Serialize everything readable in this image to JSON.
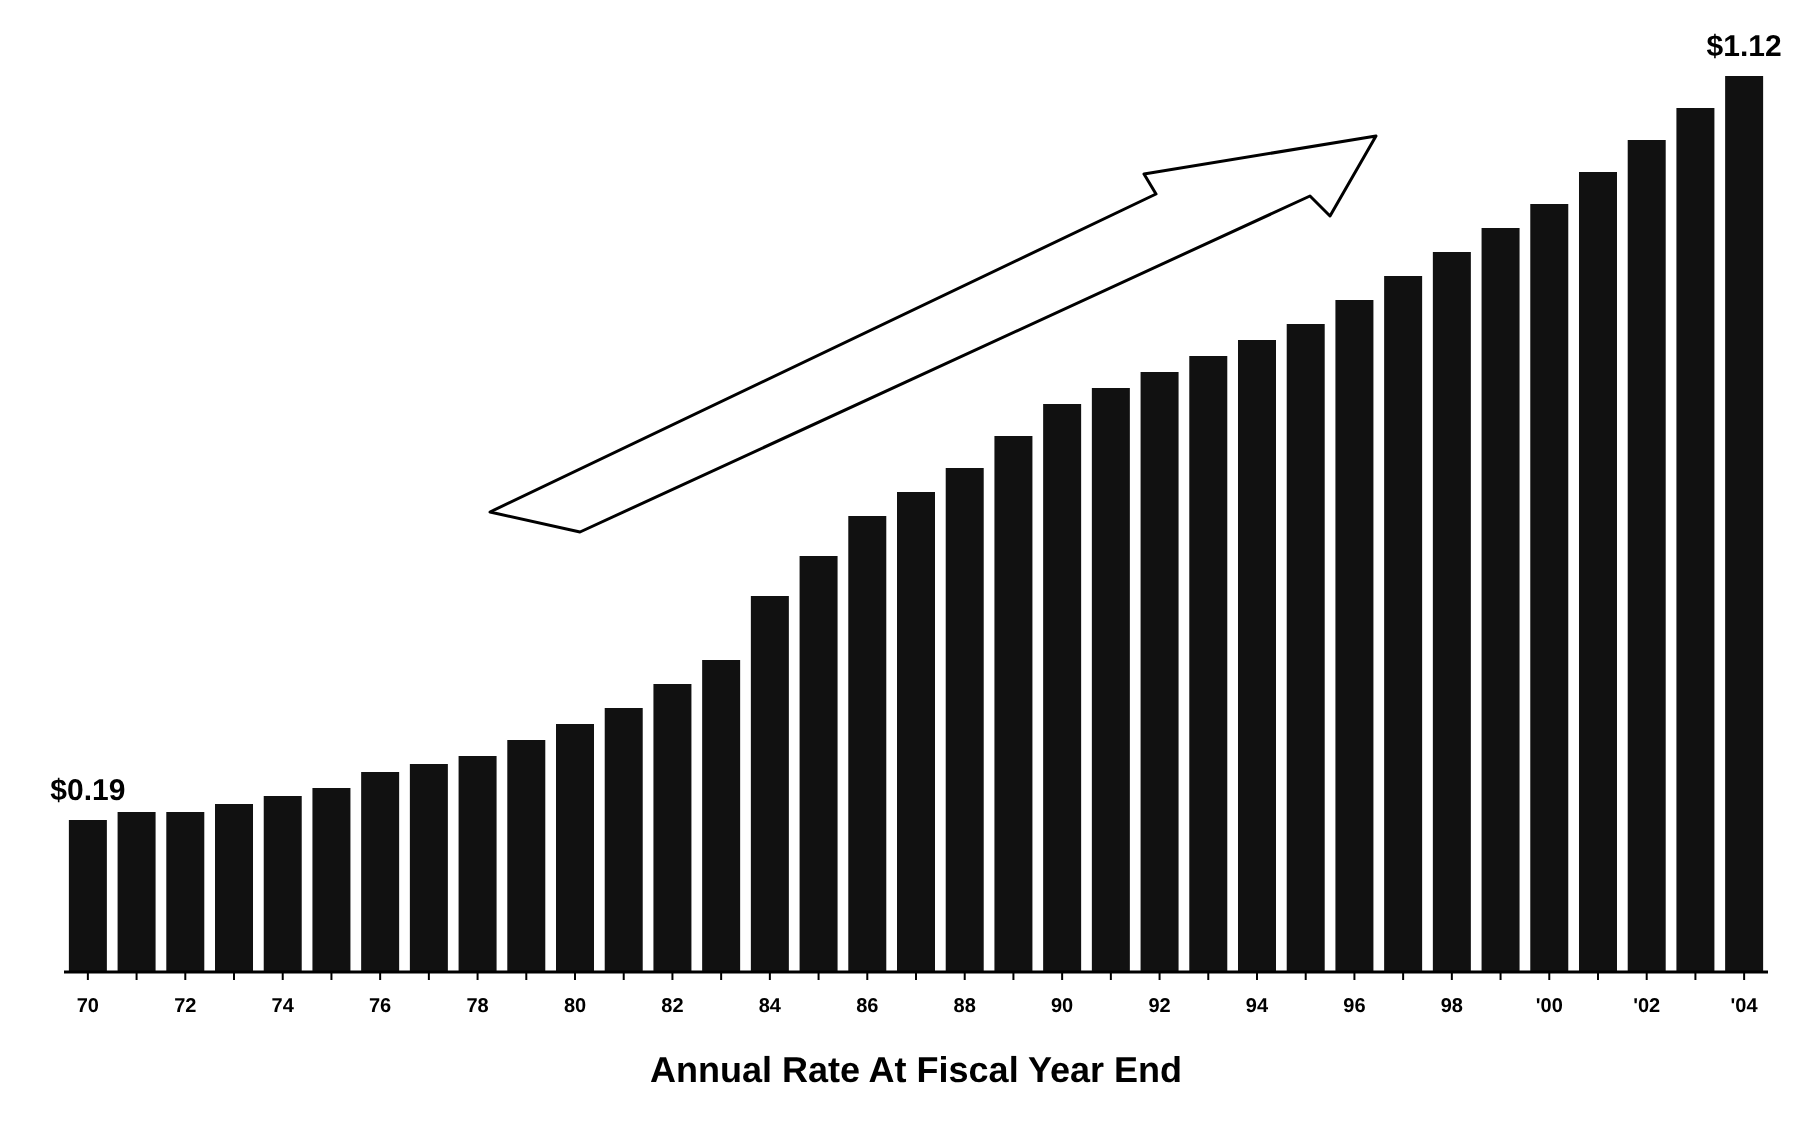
{
  "chart_data": {
    "type": "bar",
    "xlabel": "Annual Rate At Fiscal Year End",
    "color": "#111111",
    "categories": [
      "70",
      null,
      "72",
      null,
      "74",
      null,
      "76",
      null,
      "78",
      null,
      "80",
      null,
      "82",
      null,
      "84",
      null,
      "86",
      null,
      "88",
      null,
      "90",
      null,
      "92",
      null,
      "94",
      null,
      "96",
      null,
      "98",
      null,
      "'00",
      null,
      "'02",
      null,
      "'04"
    ],
    "values": [
      0.19,
      0.2,
      0.2,
      0.21,
      0.22,
      0.23,
      0.25,
      0.26,
      0.27,
      0.29,
      0.31,
      0.33,
      0.36,
      0.39,
      0.47,
      0.52,
      0.57,
      0.6,
      0.63,
      0.67,
      0.71,
      0.73,
      0.75,
      0.77,
      0.79,
      0.81,
      0.84,
      0.87,
      0.9,
      0.93,
      0.96,
      1.0,
      1.04,
      1.08,
      1.12
    ],
    "value_labels": [
      "$0.19",
      null,
      null,
      null,
      null,
      null,
      null,
      null,
      null,
      null,
      null,
      null,
      null,
      null,
      null,
      null,
      null,
      null,
      null,
      null,
      null,
      null,
      null,
      null,
      null,
      null,
      null,
      null,
      null,
      null,
      null,
      null,
      null,
      null,
      "$1.12"
    ]
  }
}
